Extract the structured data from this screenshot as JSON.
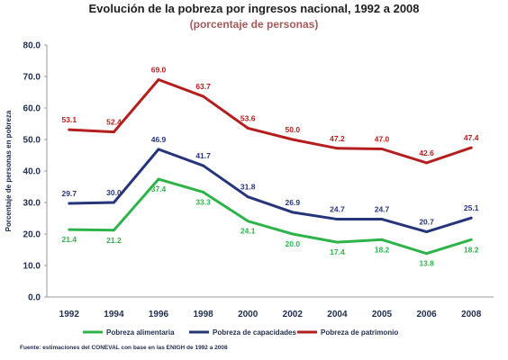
{
  "chart_data": {
    "type": "line",
    "title": "Evolución de la pobreza por ingresos nacional, 1992 a 2008",
    "subtitle": "(porcentaje de personas)",
    "ylabel": "Porcentaje de personas en pobreza",
    "xlabel": "",
    "ylim": [
      0,
      80
    ],
    "yticks": [
      "0.0",
      "10.0",
      "20.0",
      "30.0",
      "40.0",
      "50.0",
      "60.0",
      "70.0",
      "80.0"
    ],
    "categories": [
      "1992",
      "1994",
      "1996",
      "1998",
      "2000",
      "2002",
      "2004",
      "2005",
      "2006",
      "2008"
    ],
    "grid": false,
    "legend_position": "bottom",
    "series": [
      {
        "name": "Pobreza alimentaria",
        "color": "#2db34a",
        "values": [
          21.4,
          21.2,
          37.4,
          33.3,
          24.1,
          20.0,
          17.4,
          18.2,
          13.8,
          18.2
        ],
        "labels": [
          "21.4",
          "21.2",
          "37.4",
          "33.3",
          "24.1",
          "20.0",
          "17.4",
          "18.2",
          "13.8",
          "18.2"
        ]
      },
      {
        "name": "Pobreza de capacidades",
        "color": "#26357a",
        "values": [
          29.7,
          30.0,
          46.9,
          41.7,
          31.8,
          26.9,
          24.7,
          24.7,
          20.7,
          25.1
        ],
        "labels": [
          "29.7",
          "30.0",
          "46.9",
          "41.7",
          "31.8",
          "26.9",
          "24.7",
          "24.7",
          "20.7",
          "25.1"
        ]
      },
      {
        "name": "Pobreza de patrimonio",
        "color": "#b51e1e",
        "values": [
          53.1,
          52.4,
          69.0,
          63.7,
          53.6,
          50.0,
          47.2,
          47.0,
          42.6,
          47.4
        ],
        "labels": [
          "53.1",
          "52.4",
          "69.0",
          "63.7",
          "53.6",
          "50.0",
          "47.2",
          "47.0",
          "42.6",
          "47.4"
        ]
      }
    ]
  },
  "source": "Fuente: estimaciones del CONEVAL con base en las ENIGH de 1992 a 2008"
}
